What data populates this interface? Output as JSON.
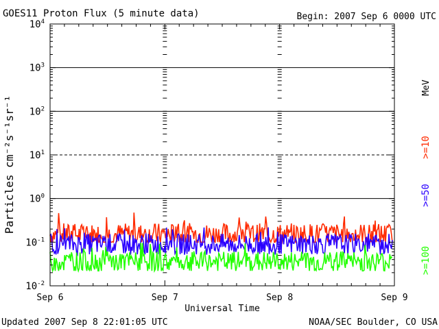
{
  "chart_data": {
    "type": "line",
    "title": "GOES11 Proton Flux (5 minute data)",
    "begin_label": "Begin: 2007 Sep 6 0000 UTC",
    "xlabel": "Universal Time",
    "ylabel": "Particles cm⁻²s⁻¹sr⁻¹",
    "yscale": "log",
    "ylim": [
      0.01,
      10000
    ],
    "y_ticks": [
      {
        "value": 0.01,
        "base": "10",
        "exp": "-2"
      },
      {
        "value": 0.1,
        "base": "10",
        "exp": "-1"
      },
      {
        "value": 1,
        "base": "10",
        "exp": "0"
      },
      {
        "value": 10,
        "base": "10",
        "exp": "1"
      },
      {
        "value": 100,
        "base": "10",
        "exp": "2"
      },
      {
        "value": 1000,
        "base": "10",
        "exp": "3"
      },
      {
        "value": 10000,
        "base": "10",
        "exp": "4"
      }
    ],
    "x_ticks": [
      "Sep 6",
      "Sep 7",
      "Sep 8",
      "Sep 9"
    ],
    "xlim": [
      "2007-09-06",
      "2007-09-09"
    ],
    "solid_hlines": [
      1,
      100,
      1000
    ],
    "dashed_hlines": [
      10
    ],
    "series": [
      {
        "name": ">=10",
        "unit": "MeV",
        "color": "#ff2a00",
        "base_value": 0.15,
        "range": [
          0.1,
          0.5
        ]
      },
      {
        "name": ">=50",
        "color": "#2a00ff",
        "base_value": 0.09,
        "range": [
          0.05,
          0.22
        ]
      },
      {
        "name": ">=100",
        "color": "#22ff00",
        "base_value": 0.035,
        "range": [
          0.022,
          0.1
        ]
      }
    ]
  },
  "footer": {
    "updated": "Updated 2007 Sep  8 22:01:05 UTC",
    "source": "NOAA/SEC Boulder, CO USA"
  }
}
